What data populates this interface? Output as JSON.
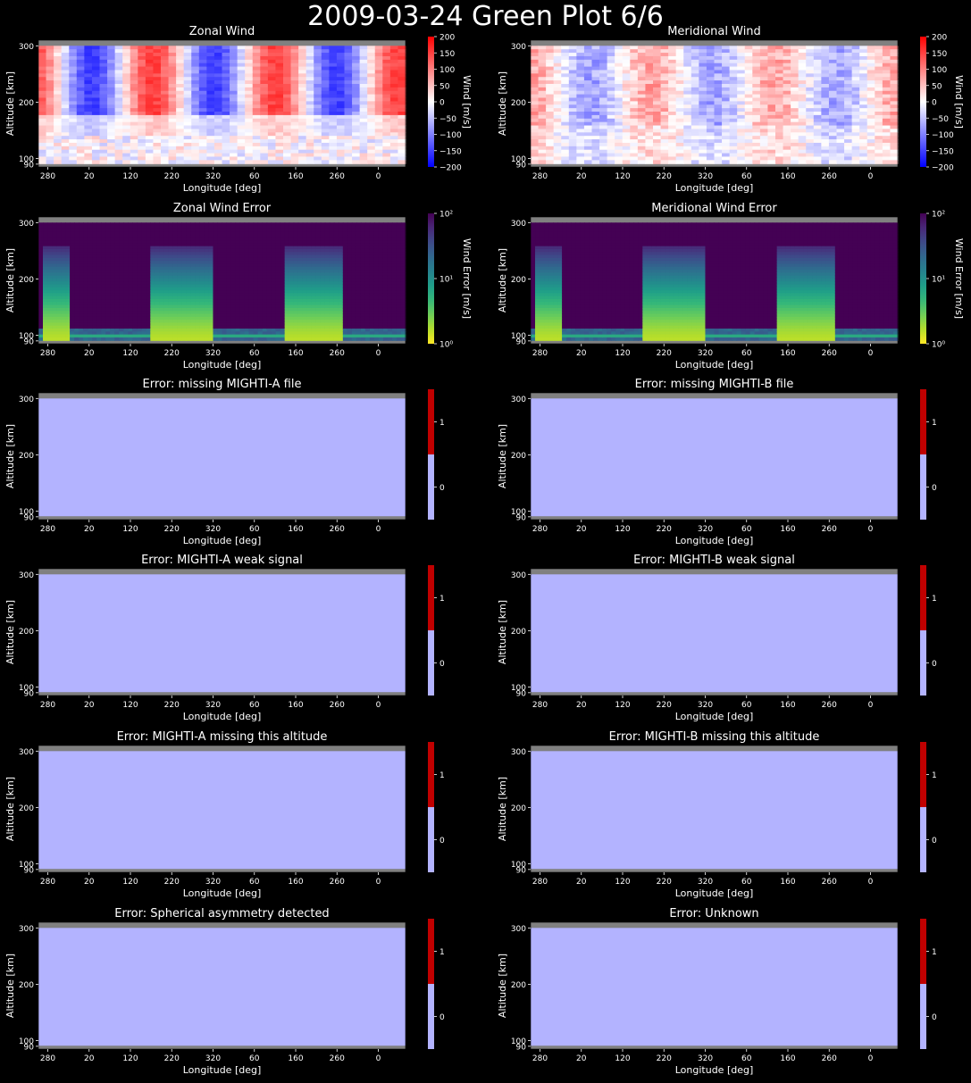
{
  "suptitle": "2009-03-24 Green Plot 6/6",
  "common": {
    "xlabel": "Longitude [deg]",
    "ylabel": "Altitude [km]",
    "xticks": [
      "280",
      "20",
      "120",
      "220",
      "320",
      "60",
      "160",
      "260",
      "0"
    ],
    "yticks": [
      300,
      200,
      100,
      90
    ],
    "ylim": [
      85,
      310
    ]
  },
  "chart_data": [
    {
      "type": "heatmap",
      "title": "Zonal Wind",
      "kind": "wind",
      "seed": 1,
      "colorbar": {
        "label": "Wind [m/s]",
        "colormap": "bwr",
        "range": [
          -200,
          200
        ],
        "ticks": [
          "200",
          "150",
          "100",
          "50",
          "0",
          "−50",
          "−100",
          "−150",
          "−200"
        ]
      }
    },
    {
      "type": "heatmap",
      "title": "Meridional Wind",
      "kind": "wind",
      "seed": 2,
      "colorbar": {
        "label": "Wind [m/s]",
        "colormap": "bwr",
        "range": [
          -200,
          200
        ],
        "ticks": [
          "200",
          "150",
          "100",
          "50",
          "0",
          "−50",
          "−100",
          "−150",
          "−200"
        ]
      }
    },
    {
      "type": "heatmap",
      "title": "Zonal Wind Error",
      "kind": "error",
      "colorbar": {
        "label": "Wind Error [m/s]",
        "colormap": "viridis_r",
        "scale": "log",
        "range": [
          1,
          100
        ],
        "ticks": [
          "10²",
          "10¹",
          "10⁰"
        ]
      }
    },
    {
      "type": "heatmap",
      "title": "Meridional Wind Error",
      "kind": "error",
      "colorbar": {
        "label": "Wind Error [m/s]",
        "colormap": "viridis_r",
        "scale": "log",
        "range": [
          1,
          100
        ],
        "ticks": [
          "10²",
          "10¹",
          "10⁰"
        ]
      }
    },
    {
      "type": "heatmap",
      "title": "Error: missing MIGHTI-A file",
      "kind": "flag",
      "value": 0,
      "colorbar": {
        "label": "",
        "colors": [
          "#b3b3ff",
          "#c00000"
        ],
        "ticks": [
          "1",
          "0"
        ]
      }
    },
    {
      "type": "heatmap",
      "title": "Error: missing MIGHTI-B file",
      "kind": "flag",
      "value": 0,
      "colorbar": {
        "label": "",
        "colors": [
          "#b3b3ff",
          "#c00000"
        ],
        "ticks": [
          "1",
          "0"
        ]
      }
    },
    {
      "type": "heatmap",
      "title": "Error: MIGHTI-A weak signal",
      "kind": "flag",
      "value": 0,
      "colorbar": {
        "label": "",
        "colors": [
          "#b3b3ff",
          "#c00000"
        ],
        "ticks": [
          "1",
          "0"
        ]
      }
    },
    {
      "type": "heatmap",
      "title": "Error: MIGHTI-B weak signal",
      "kind": "flag",
      "value": 0,
      "colorbar": {
        "label": "",
        "colors": [
          "#b3b3ff",
          "#c00000"
        ],
        "ticks": [
          "1",
          "0"
        ]
      }
    },
    {
      "type": "heatmap",
      "title": "Error: MIGHTI-A missing this altitude",
      "kind": "flag",
      "value": 0,
      "colorbar": {
        "label": "",
        "colors": [
          "#b3b3ff",
          "#c00000"
        ],
        "ticks": [
          "1",
          "0"
        ]
      }
    },
    {
      "type": "heatmap",
      "title": "Error: MIGHTI-B missing this altitude",
      "kind": "flag",
      "value": 0,
      "colorbar": {
        "label": "",
        "colors": [
          "#b3b3ff",
          "#c00000"
        ],
        "ticks": [
          "1",
          "0"
        ]
      }
    },
    {
      "type": "heatmap",
      "title": "Error: Spherical asymmetry detected",
      "kind": "flag",
      "value": 0,
      "colorbar": {
        "label": "",
        "colors": [
          "#b3b3ff",
          "#c00000"
        ],
        "ticks": [
          "1",
          "0"
        ]
      }
    },
    {
      "type": "heatmap",
      "title": "Error: Unknown",
      "kind": "flag",
      "value": 0,
      "colorbar": {
        "label": "",
        "colors": [
          "#b3b3ff",
          "#c00000"
        ],
        "ticks": [
          "1",
          "0"
        ]
      }
    }
  ]
}
